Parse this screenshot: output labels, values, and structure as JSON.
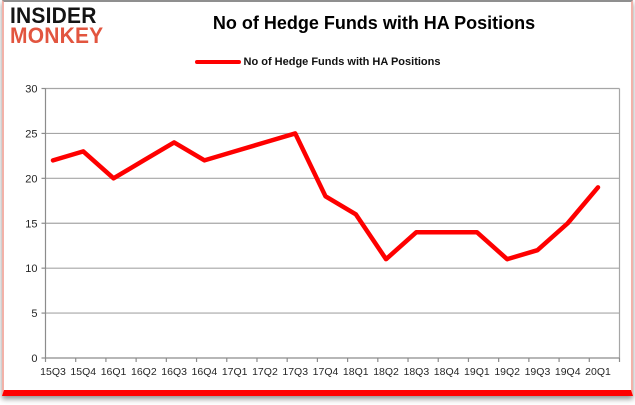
{
  "logo": {
    "line1": "INSIDER",
    "line2": "MONKEY",
    "color1": "#141414",
    "color2": "#e2553f"
  },
  "header": {
    "title": "No of Hedge Funds with HA Positions"
  },
  "legend": {
    "label": "No of Hedge Funds with HA Positions",
    "swatch_color": "#fe0000"
  },
  "chart_data": {
    "type": "line",
    "title": "No of Hedge Funds with HA Positions",
    "categories": [
      "15Q3",
      "15Q4",
      "16Q1",
      "16Q2",
      "16Q3",
      "16Q4",
      "17Q1",
      "17Q2",
      "17Q3",
      "17Q4",
      "18Q1",
      "18Q2",
      "18Q3",
      "18Q4",
      "19Q1",
      "19Q2",
      "19Q3",
      "19Q4",
      "20Q1"
    ],
    "series": [
      {
        "name": "No of Hedge Funds with HA Positions",
        "color": "#fe0000",
        "values": [
          22,
          23,
          20,
          22,
          24,
          22,
          23,
          24,
          25,
          18,
          16,
          11,
          14,
          14,
          14,
          11,
          12,
          15,
          19
        ]
      }
    ],
    "xlabel": "",
    "ylabel": "",
    "ylim": [
      0,
      30
    ],
    "yticks": [
      0,
      5,
      10,
      15,
      20,
      25,
      30
    ],
    "grid": "horizontal",
    "legend_position": "top"
  },
  "colors": {
    "line": "#fe0000",
    "grid": "#a6a6a6",
    "axis": "#8c8c8c",
    "frame_bottom": "#fe0000",
    "frame_sides": "#f2b2a9",
    "frame_top": "#8f8f8f"
  }
}
